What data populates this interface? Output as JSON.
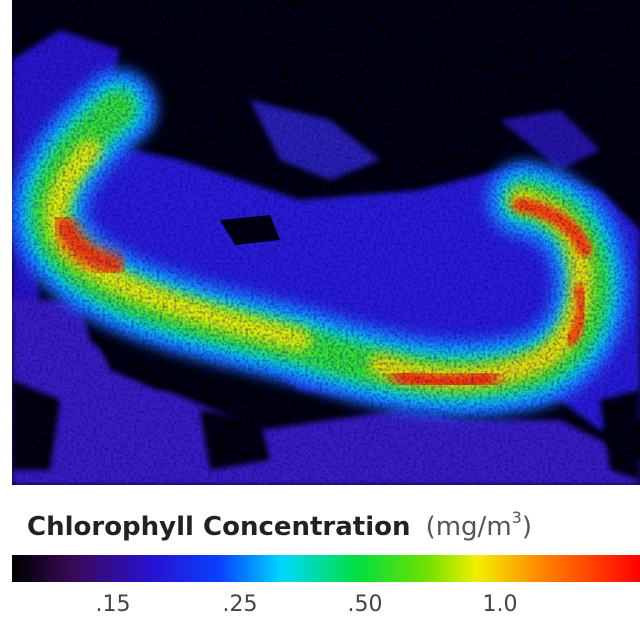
{
  "colorbar": {
    "title": "Chlorophyll Concentration",
    "unit": "(mg/m",
    "unit_sup": "3",
    "unit_close": ")",
    "ticks": [
      ".15",
      ".25",
      ".50",
      "1.0"
    ]
  }
}
